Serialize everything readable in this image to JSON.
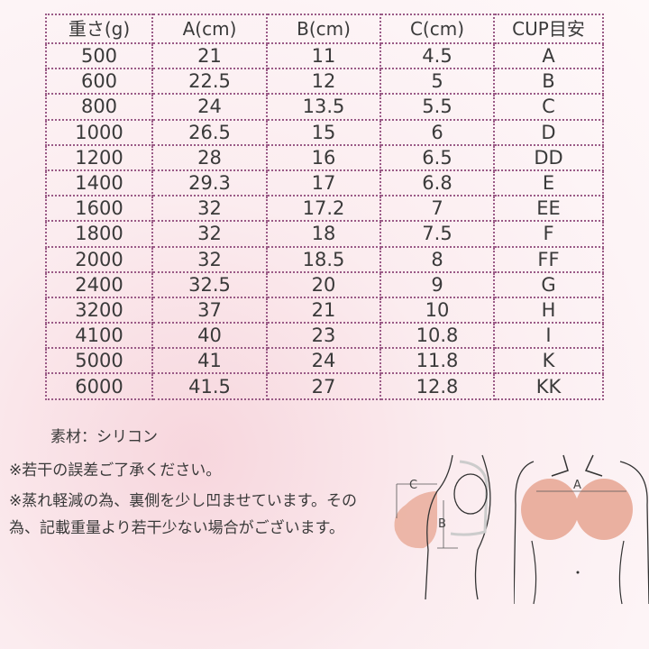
{
  "table": {
    "headers": [
      "重さ(g)",
      "A(cm)",
      "B(cm)",
      "C(cm)",
      "CUP目安"
    ],
    "rows": [
      [
        "500",
        "21",
        "11",
        "4.5",
        "A"
      ],
      [
        "600",
        "22.5",
        "12",
        "5",
        "B"
      ],
      [
        "800",
        "24",
        "13.5",
        "5.5",
        "C"
      ],
      [
        "1000",
        "26.5",
        "15",
        "6",
        "D"
      ],
      [
        "1200",
        "28",
        "16",
        "6.5",
        "DD"
      ],
      [
        "1400",
        "29.3",
        "17",
        "6.8",
        "E"
      ],
      [
        "1600",
        "32",
        "17.2",
        "7",
        "EE"
      ],
      [
        "1800",
        "32",
        "18",
        "7.5",
        "F"
      ],
      [
        "2000",
        "32",
        "18.5",
        "8",
        "FF"
      ],
      [
        "2400",
        "32.5",
        "20",
        "9",
        "G"
      ],
      [
        "3200",
        "37",
        "21",
        "10",
        "H"
      ],
      [
        "4100",
        "40",
        "23",
        "10.8",
        "I"
      ],
      [
        "5000",
        "41",
        "24",
        "11.8",
        "K"
      ],
      [
        "6000",
        "41.5",
        "27",
        "12.8",
        "KK"
      ]
    ]
  },
  "notes": {
    "material": "素材：シリコン",
    "note1": "※若干の誤差ご了承ください。",
    "note2": "※蒸れ軽減の為、裏側を少し凹ませています。その為、記載重量より若干少ない場合がございます。"
  },
  "diagram": {
    "label_a": "A",
    "label_b": "B",
    "label_c": "C",
    "fill_color": "#eab0a0"
  }
}
